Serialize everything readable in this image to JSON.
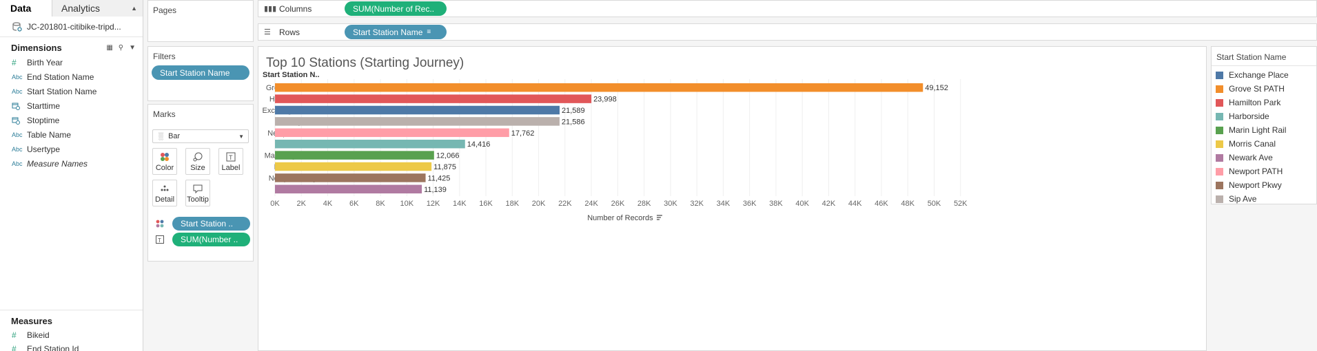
{
  "data_pane": {
    "tabs": [
      {
        "label": "Data"
      },
      {
        "label": "Analytics"
      }
    ],
    "datasource": "JC-201801-citibike-tripd...",
    "dimensions_title": "Dimensions",
    "dimensions": [
      {
        "label": "Birth Year",
        "icon": "#"
      },
      {
        "label": "End Station Name",
        "icon": "Abc"
      },
      {
        "label": "Start Station Name",
        "icon": "Abc"
      },
      {
        "label": "Starttime",
        "icon": "date"
      },
      {
        "label": "Stoptime",
        "icon": "date"
      },
      {
        "label": "Table Name",
        "icon": "Abc"
      },
      {
        "label": "Usertype",
        "icon": "Abc"
      },
      {
        "label": "Measure Names",
        "icon": "Abc"
      }
    ],
    "measures_title": "Measures",
    "measures": [
      {
        "label": "Bikeid",
        "icon": "#"
      },
      {
        "label": "End Station Id",
        "icon": "#"
      }
    ]
  },
  "shelves": {
    "pages_title": "Pages",
    "filters_title": "Filters",
    "filter_pill": "Start Station Name",
    "marks_title": "Marks",
    "mark_type": "Bar",
    "mark_buttons": [
      {
        "label": "Color"
      },
      {
        "label": "Size"
      },
      {
        "label": "Label"
      },
      {
        "label": "Detail"
      },
      {
        "label": "Tooltip"
      }
    ],
    "mark_pills": [
      {
        "label": "Start Station .."
      },
      {
        "label": "SUM(Number .."
      }
    ],
    "columns_label": "Columns",
    "columns_pill": "SUM(Number of Rec..",
    "rows_label": "Rows",
    "rows_pill": "Start Station Name"
  },
  "chart_data": {
    "type": "bar",
    "orientation": "horizontal",
    "title": "Top 10 Stations (Starting Journey)",
    "row_header": "Start Station N..",
    "xlabel": "Number of Records",
    "xlim": [
      0,
      53000
    ],
    "x_ticks": [
      "0K",
      "2K",
      "4K",
      "6K",
      "8K",
      "10K",
      "12K",
      "14K",
      "16K",
      "18K",
      "20K",
      "22K",
      "24K",
      "26K",
      "28K",
      "30K",
      "32K",
      "34K",
      "36K",
      "38K",
      "40K",
      "42K",
      "44K",
      "46K",
      "48K",
      "50K",
      "52K"
    ],
    "grid": true,
    "categories": [
      "Grove St PATH",
      "Hamilton Park",
      "Exchange Place",
      "Sip Ave",
      "Newport PATH",
      "Harborside",
      "Marin Light Rail",
      "Morris Canal",
      "Newport Pkwy",
      "Newark Ave"
    ],
    "values": [
      49152,
      23998,
      21589,
      21586,
      17762,
      14416,
      12066,
      11875,
      11425,
      11139
    ],
    "value_labels": [
      "49,152",
      "23,998",
      "21,589",
      "21,586",
      "17,762",
      "14,416",
      "12,066",
      "11,875",
      "11,425",
      "11,139"
    ],
    "colors": [
      "#f28e2b",
      "#e15759",
      "#4e79a7",
      "#bab0ac",
      "#ff9da7",
      "#76b7b2",
      "#59a14f",
      "#edc948",
      "#9c755f",
      "#b07aa1"
    ]
  },
  "legend": {
    "title": "Start Station Name",
    "items": [
      {
        "label": "Exchange Place",
        "color": "#4e79a7"
      },
      {
        "label": "Grove St PATH",
        "color": "#f28e2b"
      },
      {
        "label": "Hamilton Park",
        "color": "#e15759"
      },
      {
        "label": "Harborside",
        "color": "#76b7b2"
      },
      {
        "label": "Marin Light Rail",
        "color": "#59a14f"
      },
      {
        "label": "Morris Canal",
        "color": "#edc948"
      },
      {
        "label": "Newark Ave",
        "color": "#b07aa1"
      },
      {
        "label": "Newport PATH",
        "color": "#ff9da7"
      },
      {
        "label": "Newport Pkwy",
        "color": "#9c755f"
      },
      {
        "label": "Sip Ave",
        "color": "#bab0ac"
      }
    ]
  }
}
